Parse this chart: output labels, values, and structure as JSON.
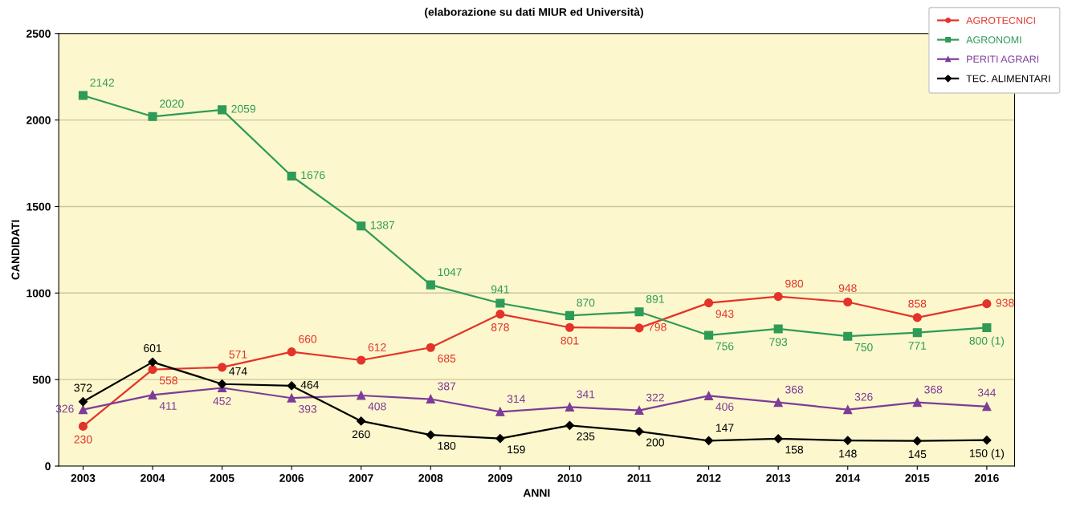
{
  "chart_data": {
    "type": "line",
    "subtitle": "(elaborazione su dati MIUR ed Università)",
    "xlabel": "ANNI",
    "ylabel": "CANDIDATI",
    "categories": [
      "2003",
      "2004",
      "2005",
      "2006",
      "2007",
      "2008",
      "2009",
      "2010",
      "2011",
      "2012",
      "2013",
      "2014",
      "2015",
      "2016"
    ],
    "ylim": [
      0,
      2500
    ],
    "yticks": [
      0,
      500,
      1000,
      1500,
      2000,
      2500
    ],
    "grid": "y",
    "legend": "top right",
    "series": [
      {
        "name": "AGROTECNICI",
        "color": "#e3342a",
        "marker": "circle",
        "values": [
          230,
          558,
          571,
          660,
          612,
          685,
          878,
          801,
          798,
          943,
          980,
          948,
          858,
          938
        ],
        "value_labels": [
          "230",
          "558",
          "571",
          "660",
          "612",
          "685",
          "878",
          "801",
          "798",
          "943",
          "980",
          "948",
          "858",
          "938"
        ]
      },
      {
        "name": "AGRONOMI",
        "color": "#2e9b57",
        "marker": "square",
        "values": [
          2142,
          2020,
          2059,
          1676,
          1387,
          1047,
          941,
          870,
          891,
          756,
          793,
          750,
          771,
          800
        ],
        "value_labels": [
          "2142",
          "2020",
          "2059",
          "1676",
          "1387",
          "1047",
          "941",
          "870",
          "891",
          "756",
          "793",
          "750",
          "771",
          "800 (1)"
        ]
      },
      {
        "name": "PERITI AGRARI",
        "color": "#7d3c98",
        "marker": "triangle",
        "values": [
          326,
          411,
          452,
          393,
          408,
          387,
          314,
          341,
          322,
          406,
          368,
          326,
          368,
          344
        ],
        "value_labels": [
          "326",
          "411",
          "452",
          "393",
          "408",
          "387",
          "314",
          "341",
          "322",
          "406",
          "368",
          "326",
          "368",
          "344"
        ]
      },
      {
        "name": "TEC. ALIMENTARI",
        "color": "#000000",
        "marker": "diamond",
        "values": [
          372,
          601,
          474,
          464,
          260,
          180,
          159,
          235,
          200,
          147,
          158,
          148,
          145,
          150
        ],
        "value_labels": [
          "372",
          "601",
          "474",
          "464",
          "260",
          "180",
          "159",
          "235",
          "200",
          "147",
          "158",
          "148",
          "145",
          "150 (1)"
        ]
      }
    ]
  }
}
